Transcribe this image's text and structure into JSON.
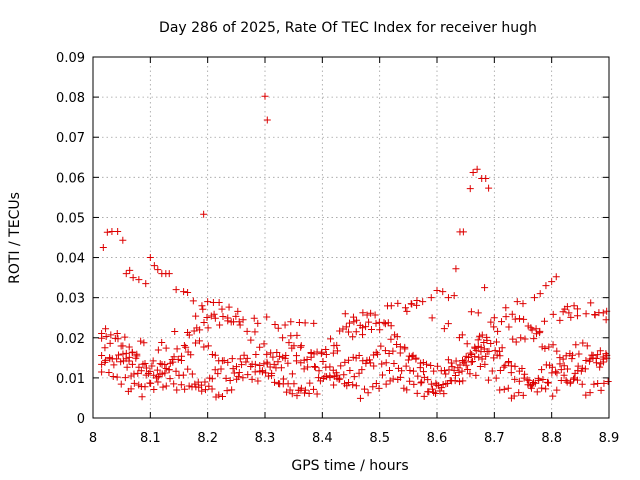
{
  "chart_data": {
    "type": "scatter",
    "title": "Day 286 of 2025, Rate Of TEC Index for receiver hugh",
    "xlabel": "GPS time / hours",
    "ylabel": "ROTI / TECUs",
    "xlim": [
      8.0,
      8.9
    ],
    "ylim": [
      0,
      0.09
    ],
    "xticks": [
      "8",
      "8.1",
      "8.2",
      "8.3",
      "8.4",
      "8.5",
      "8.6",
      "8.7",
      "8.8",
      "8.9"
    ],
    "yticks": [
      "0",
      "0.01",
      "0.02",
      "0.03",
      "0.04",
      "0.05",
      "0.06",
      "0.07",
      "0.08",
      "0.09"
    ],
    "grid": true,
    "marker": "+",
    "color": "#dd0000",
    "series": [
      {
        "values": [
          [
            8.018,
            0.0425
          ],
          [
            8.025,
            0.0463
          ],
          [
            8.033,
            0.0465
          ],
          [
            8.043,
            0.0465
          ],
          [
            8.052,
            0.0443
          ],
          [
            8.058,
            0.036
          ],
          [
            8.064,
            0.0368
          ],
          [
            8.07,
            0.035
          ],
          [
            8.08,
            0.0345
          ],
          [
            8.092,
            0.0335
          ],
          [
            8.1,
            0.04
          ],
          [
            8.107,
            0.038
          ],
          [
            8.113,
            0.037
          ],
          [
            8.12,
            0.036
          ],
          [
            8.127,
            0.036
          ],
          [
            8.133,
            0.036
          ],
          [
            8.145,
            0.032
          ],
          [
            8.158,
            0.0315
          ],
          [
            8.165,
            0.0313
          ],
          [
            8.193,
            0.0508
          ],
          [
            8.3,
            0.0802
          ],
          [
            8.304,
            0.0743
          ],
          [
            8.633,
            0.0372
          ],
          [
            8.64,
            0.0464
          ],
          [
            8.646,
            0.0464
          ],
          [
            8.658,
            0.0572
          ],
          [
            8.663,
            0.0612
          ],
          [
            8.67,
            0.062
          ],
          [
            8.678,
            0.0597
          ],
          [
            8.685,
            0.0597
          ],
          [
            8.69,
            0.0573
          ],
          [
            8.683,
            0.0325
          ],
          [
            8.77,
            0.03
          ],
          [
            8.78,
            0.031
          ],
          [
            8.79,
            0.033
          ],
          [
            8.8,
            0.034
          ],
          [
            8.808,
            0.0352
          ],
          [
            8.62,
            0.03
          ],
          [
            8.63,
            0.0305
          ],
          [
            8.6,
            0.0318
          ],
          [
            8.61,
            0.0315
          ],
          [
            8.59,
            0.03
          ],
          [
            8.575,
            0.029
          ],
          [
            8.565,
            0.0293
          ],
          [
            8.555,
            0.0285
          ],
          [
            8.545,
            0.0275
          ],
          [
            8.2,
            0.029
          ],
          [
            8.21,
            0.0288
          ],
          [
            8.22,
            0.0288
          ],
          [
            8.19,
            0.028
          ],
          [
            8.175,
            0.0292
          ],
          [
            8.245,
            0.024
          ],
          [
            8.255,
            0.024
          ],
          [
            8.235,
            0.0242
          ],
          [
            8.335,
            0.0232
          ],
          [
            8.345,
            0.024
          ],
          [
            8.36,
            0.0238
          ],
          [
            8.37,
            0.0237
          ],
          [
            8.385,
            0.0236
          ],
          [
            8.44,
            0.026
          ],
          [
            8.455,
            0.024
          ],
          [
            8.47,
            0.0225
          ],
          [
            8.5,
            0.022
          ],
          [
            8.51,
            0.0235
          ],
          [
            8.52,
            0.023
          ],
          [
            8.66,
            0.0265
          ],
          [
            8.672,
            0.0262
          ],
          [
            8.7,
            0.025
          ],
          [
            8.72,
            0.0275
          ],
          [
            8.74,
            0.029
          ],
          [
            8.75,
            0.0285
          ],
          [
            8.82,
            0.0265
          ],
          [
            8.83,
            0.0262
          ],
          [
            8.845,
            0.0255
          ],
          [
            8.86,
            0.026
          ],
          [
            8.875,
            0.0258
          ],
          [
            8.89,
            0.0262
          ],
          [
            8.895,
            0.0245
          ]
        ]
      }
    ]
  }
}
